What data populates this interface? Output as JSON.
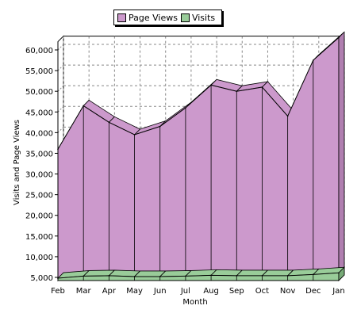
{
  "chart_data": {
    "type": "area",
    "categories": [
      "Feb",
      "Mar",
      "Apr",
      "May",
      "Jun",
      "Jul",
      "Aug",
      "Sep",
      "Oct",
      "Nov",
      "Dec",
      "Jan"
    ],
    "series": [
      {
        "name": "Page Views",
        "values": [
          36000,
          46500,
          42500,
          39500,
          41500,
          46000,
          51500,
          50000,
          51000,
          44000,
          57500,
          63000
        ],
        "color": "#cc99cc"
      },
      {
        "name": "Visits",
        "values": [
          4800,
          5300,
          5400,
          5200,
          5200,
          5300,
          5500,
          5400,
          5400,
          5400,
          5700,
          6100
        ],
        "color": "#99cc99"
      }
    ],
    "yticks": [
      "5,000",
      "10,000",
      "15,000",
      "20,000",
      "25,000",
      "30,000",
      "35,000",
      "40,000",
      "45,000",
      "50,000",
      "55,000",
      "60,000"
    ],
    "xlabel": "Month",
    "ylabel": "Visits and Page Views",
    "ylim": [
      5000,
      62000
    ],
    "grid": true,
    "legend_position": "top-center",
    "style": "3d"
  }
}
